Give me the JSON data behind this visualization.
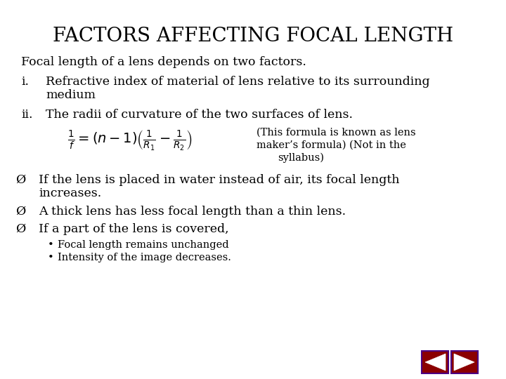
{
  "title": "FACTORS AFFECTING FOCAL LENGTH",
  "title_fontsize": 20,
  "body_fontsize": 12.5,
  "small_fontsize": 10.5,
  "formula_fontsize": 14,
  "line1": "Focal length of a lens depends on two factors.",
  "formula_note_line1": "(This formula is known as lens",
  "formula_note_line2": "maker’s formula) (Not in the",
  "formula_note_line3": "syllabus)",
  "nav_color": "#8B0000",
  "nav_border": "#4B0082"
}
